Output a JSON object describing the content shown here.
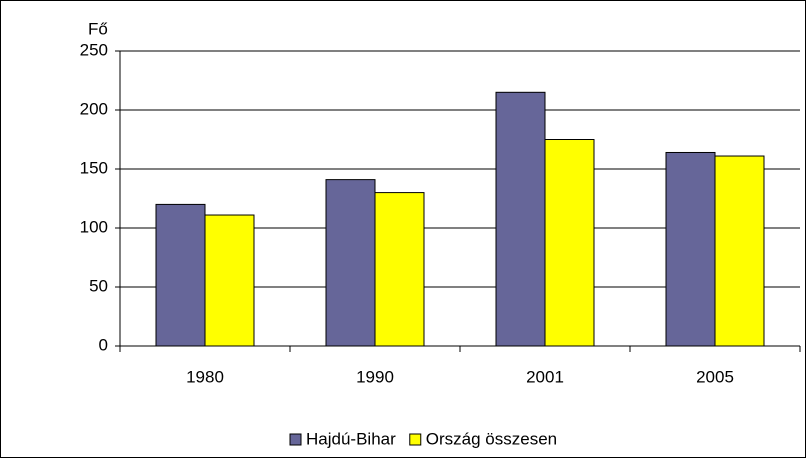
{
  "chart_data": {
    "type": "bar",
    "y_label": "Fő",
    "categories": [
      "1980",
      "1990",
      "2001",
      "2005"
    ],
    "series": [
      {
        "name": "Hajdú-Bihar",
        "color": "#666699",
        "values": [
          120,
          141,
          215,
          164
        ]
      },
      {
        "name": "Ország összesen",
        "color": "#ffff00",
        "values": [
          111,
          130,
          175,
          161
        ]
      }
    ],
    "ylim": [
      0,
      250
    ],
    "yticks": [
      0,
      50,
      100,
      150,
      200,
      250
    ],
    "grid": true,
    "legend": "bottom"
  }
}
